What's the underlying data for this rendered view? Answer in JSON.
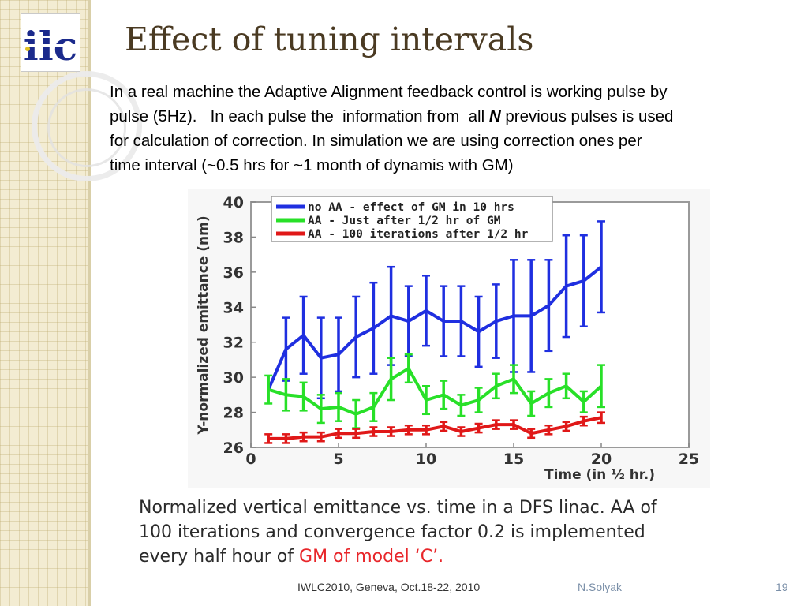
{
  "slide": {
    "title": "Effect of tuning intervals",
    "logo_text": "ilc",
    "body": {
      "line1": "In a real machine the Adaptive Alignment feedback control is working pulse by",
      "line2_pre": "pulse (5Hz).   In each pulse the  information from  all ",
      "line2_em": "N",
      "line2_post": " previous pulses is used",
      "line3": "for calculation of correction.  In simulation we are using correction ones per",
      "line4": "time interval (~0.5 hrs for ~1 month of dynamis with GM)"
    },
    "caption": {
      "line1": "Normalized vertical emittance vs. time in a DFS linac. AA of",
      "line2": "100 iterations and convergence factor 0.2 is implemented",
      "line3_pre": "every half hour of ",
      "line3_red": "GM of model ‘C’."
    },
    "footer": {
      "conference": "IWLC2010, Geneva, Oct.18-22, 2010",
      "author": "N.Solyak",
      "page": "19"
    }
  },
  "colors": {
    "title": "#4a3a22",
    "caption_highlight": "#e8262a",
    "footer_text": "#7a8fa8"
  },
  "chart_data": {
    "type": "line",
    "xlabel": "Time (in ½ hr.)",
    "ylabel": "Y-normalized emittance (nm)",
    "xlim": [
      0,
      25
    ],
    "ylim": [
      26,
      40
    ],
    "xticks": [
      0,
      5,
      10,
      15,
      20,
      25
    ],
    "yticks": [
      26,
      28,
      30,
      32,
      34,
      36,
      38,
      40
    ],
    "grid": false,
    "legend_position": "top",
    "x": [
      1,
      2,
      3,
      4,
      5,
      6,
      7,
      8,
      9,
      10,
      11,
      12,
      13,
      14,
      15,
      16,
      17,
      18,
      19,
      20
    ],
    "series": [
      {
        "name": "no AA - effect of GM in 10 hrs",
        "color": "#1f2fe0",
        "values": [
          29.3,
          31.6,
          32.4,
          31.1,
          31.3,
          32.3,
          32.8,
          33.5,
          33.2,
          33.8,
          33.2,
          33.2,
          32.6,
          33.2,
          33.5,
          33.5,
          34.1,
          35.2,
          35.5,
          36.3
        ],
        "errors": [
          0.0,
          1.8,
          2.2,
          2.3,
          2.1,
          2.3,
          2.6,
          2.8,
          2.0,
          2.0,
          2.0,
          2.0,
          2.0,
          2.1,
          3.2,
          3.2,
          2.6,
          2.9,
          2.6,
          2.6
        ]
      },
      {
        "name": "AA - Just after 1/2 hr of GM",
        "color": "#28e028",
        "values": [
          29.3,
          29.0,
          28.9,
          28.2,
          28.3,
          27.9,
          28.3,
          29.9,
          30.5,
          28.7,
          29.0,
          28.4,
          28.7,
          29.5,
          29.9,
          28.5,
          29.1,
          29.5,
          28.6,
          29.5
        ],
        "errors": [
          0.8,
          0.9,
          0.8,
          0.8,
          0.8,
          0.8,
          0.8,
          1.2,
          0.8,
          0.8,
          0.8,
          0.6,
          0.7,
          0.7,
          0.8,
          0.7,
          0.8,
          0.7,
          0.6,
          1.2
        ]
      },
      {
        "name": "AA - 100 iterations after 1/2 hr",
        "color": "#e01818",
        "values": [
          26.5,
          26.5,
          26.6,
          26.6,
          26.8,
          26.8,
          26.9,
          26.9,
          27.0,
          27.0,
          27.2,
          26.9,
          27.1,
          27.3,
          27.3,
          26.8,
          27.0,
          27.2,
          27.5,
          27.7
        ],
        "errors": [
          0.25,
          0.25,
          0.25,
          0.25,
          0.25,
          0.25,
          0.25,
          0.25,
          0.25,
          0.25,
          0.25,
          0.25,
          0.25,
          0.25,
          0.25,
          0.25,
          0.25,
          0.25,
          0.25,
          0.3
        ]
      }
    ]
  }
}
